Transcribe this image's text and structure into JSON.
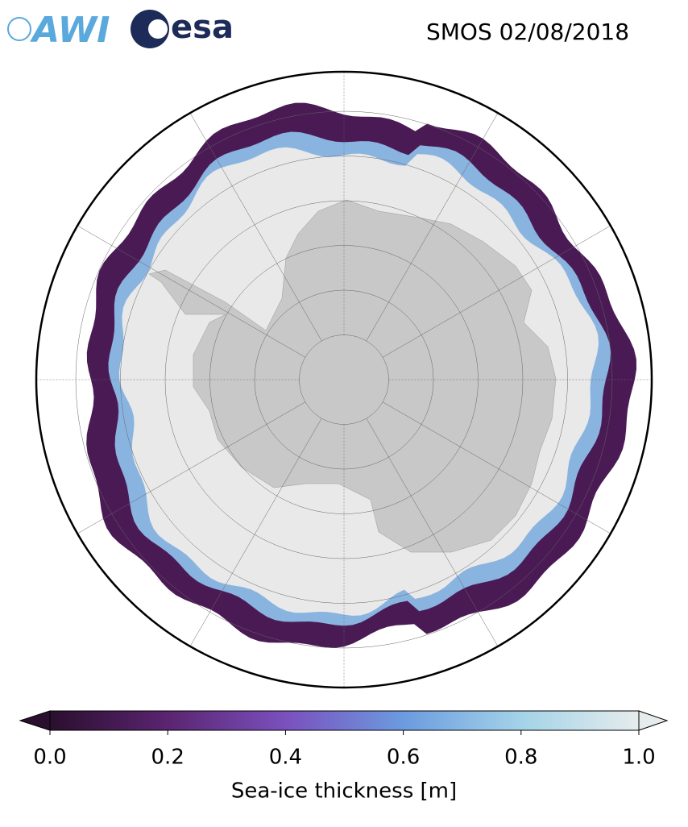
{
  "header": {
    "logos": [
      "AWI",
      "esa"
    ],
    "title": "SMOS 02/08/2018"
  },
  "colorbar": {
    "label": "Sea-ice thickness [m]",
    "lim": [
      0,
      1
    ],
    "ticks": [
      {
        "value": 0,
        "label": "0.0"
      },
      {
        "value": 0.2,
        "label": "0.2"
      },
      {
        "value": 0.4,
        "label": "0.4"
      },
      {
        "value": 0.6,
        "label": "0.6"
      },
      {
        "value": 0.8,
        "label": "0.8"
      },
      {
        "value": 1,
        "label": "1.0"
      }
    ],
    "colors": [
      "#2a0f2e",
      "#5b2470",
      "#7a50bd",
      "#6c9be0",
      "#a3d3e8",
      "#e6ecec"
    ]
  }
}
